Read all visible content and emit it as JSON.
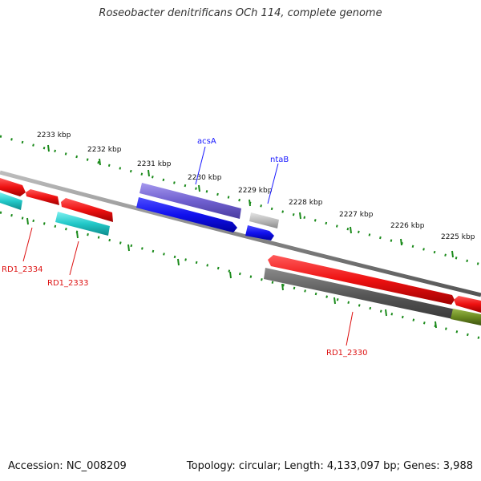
{
  "title": "Roseobacter denitrificans OCh 114, complete genome",
  "accession": "Accession: NC_008209",
  "summary": "Topology: circular; Length: 4,133,097 bp; Genes: 3,988",
  "ticks": [
    {
      "label": "2233 kbp"
    },
    {
      "label": "2232 kbp"
    },
    {
      "label": "2231 kbp"
    },
    {
      "label": "2230 kbp"
    },
    {
      "label": "2229 kbp"
    },
    {
      "label": "2228 kbp"
    },
    {
      "label": "2227 kbp"
    },
    {
      "label": "2226 kbp"
    },
    {
      "label": "2225 kbp"
    }
  ],
  "gene_labels": [
    {
      "text": "acsA",
      "color": "#1a1aff"
    },
    {
      "text": "ntaB",
      "color": "#1a1aff"
    },
    {
      "text": "RD1_2334",
      "color": "#dd1111"
    },
    {
      "text": "RD1_2333",
      "color": "#dd1111"
    },
    {
      "text": "RD1_2330",
      "color": "#dd1111"
    }
  ],
  "colors": {
    "backbone": "#888888",
    "tick": "#1a8a1a",
    "red_feature": "#ee1111",
    "blue_feature": "#1111ee",
    "purple_feature": "#7060d0",
    "cyan_feature": "#22c8c8",
    "grey_feature": "#555555",
    "light_grey_feature": "#bbbbbb",
    "olive_feature": "#6a8a20"
  }
}
